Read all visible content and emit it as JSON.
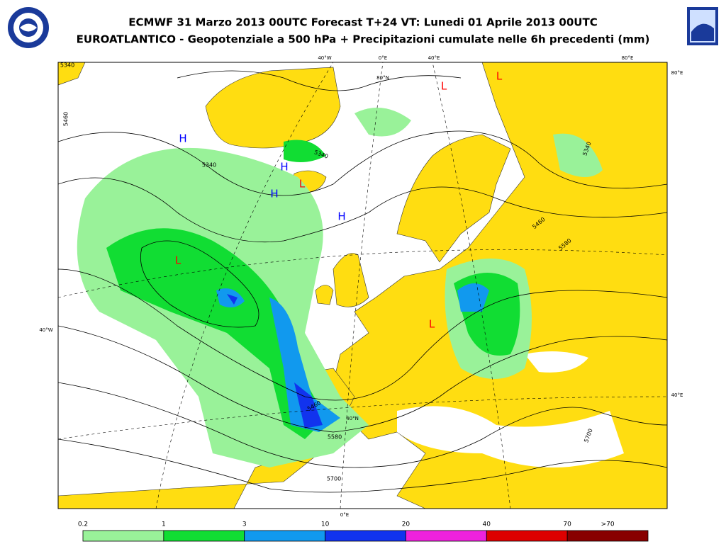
{
  "header": {
    "title": "ECMWF 31 Marzo 2013 00UTC Forecast T+24 VT: Lunedi 01 Aprile 2013 00UTC",
    "subtitle": "EUROATLANTICO - Geopotenziale a 500 hPa + Precipitazioni cumulate nelle 6h precedenti (mm)"
  },
  "map": {
    "graticule_labels": [
      "40°W",
      "0°E",
      "40°E",
      "80°E",
      "80°E",
      "40°W",
      "40°E",
      "0°E",
      "80°N",
      "40°N"
    ],
    "contour_labels": [
      "5340",
      "5460",
      "5340",
      "5340",
      "5340",
      "5460",
      "5580",
      "5460",
      "5580",
      "5700",
      "5700"
    ],
    "pressure_centers": [
      {
        "label": "H",
        "color": "#0000ff"
      },
      {
        "label": "H",
        "color": "#0000ff"
      },
      {
        "label": "H",
        "color": "#0000ff"
      },
      {
        "label": "H",
        "color": "#0000ff"
      },
      {
        "label": "L",
        "color": "#ff0000"
      },
      {
        "label": "L",
        "color": "#ff0000"
      },
      {
        "label": "L",
        "color": "#ff0000"
      },
      {
        "label": "L",
        "color": "#ff0000"
      },
      {
        "label": "L",
        "color": "#ff0000"
      }
    ]
  },
  "legend": {
    "labels": [
      "0.2",
      "1",
      "3",
      "10",
      "20",
      "40",
      "70",
      ">70"
    ],
    "colors": [
      "#99f299",
      "#11dd33",
      "#1199ee",
      "#1133ee",
      "#ee22dd",
      "#dd0000",
      "#880000"
    ]
  }
}
